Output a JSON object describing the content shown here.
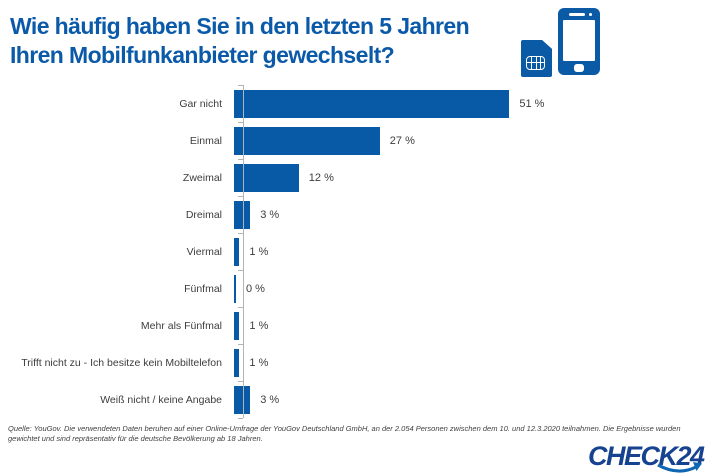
{
  "header": {
    "title_line1": "Wie häufig haben Sie in den letzten 5 Jahren",
    "title_line2": "Ihren Mobilfunkanbieter gewechselt?"
  },
  "icons": {
    "smartphone": "smartphone-icon",
    "sim": "sim-card-icon"
  },
  "colors": {
    "title_blue": "#0b5aa9",
    "bar_blue": "#085aa6",
    "icon_blue": "#0b5aa5",
    "logo_navy": "#17428f",
    "logo_swoosh": "#0f66b2",
    "axis_gray": "#b3b3b3",
    "text_gray": "#3d3d3d"
  },
  "chart_data": {
    "type": "bar",
    "orientation": "horizontal",
    "title": "Wie häufig haben Sie in den letzten 5 Jahren Ihren Mobilfunkanbieter gewechselt?",
    "categories": [
      "Gar nicht",
      "Einmal",
      "Zweimal",
      "Dreimal",
      "Viermal",
      "Fünfmal",
      "Mehr als Fünfmal",
      "Trifft nicht zu - Ich besitze kein Mobiltelefon",
      "Weiß nicht / keine Angabe"
    ],
    "values": [
      51,
      27,
      12,
      3,
      1,
      0,
      1,
      1,
      3
    ],
    "value_labels": [
      "51 %",
      "27 %",
      "12 %",
      "3 %",
      "1 %",
      "0 %",
      "1 %",
      "1 %",
      "3 %"
    ],
    "unit": "%",
    "xlabel": "",
    "ylabel": "",
    "xlim": [
      0,
      55
    ],
    "grid": false,
    "legend": false,
    "bar_color": "#085aa6"
  },
  "footer": {
    "source_lines": [
      "Quelle: YouGov. Die verwendeten Daten beruhen auf einer Online-Umfrage der YouGov Deutschland GmbH, an der 2.054 Personen zwischen dem 10. und 12.3.2020 teilnahmen. Die Ergebnisse wurden",
      "gewichtet und sind repräsentativ für die deutsche Bevölkerung ab 18 Jahren."
    ],
    "logo_text": "CHECK24"
  }
}
